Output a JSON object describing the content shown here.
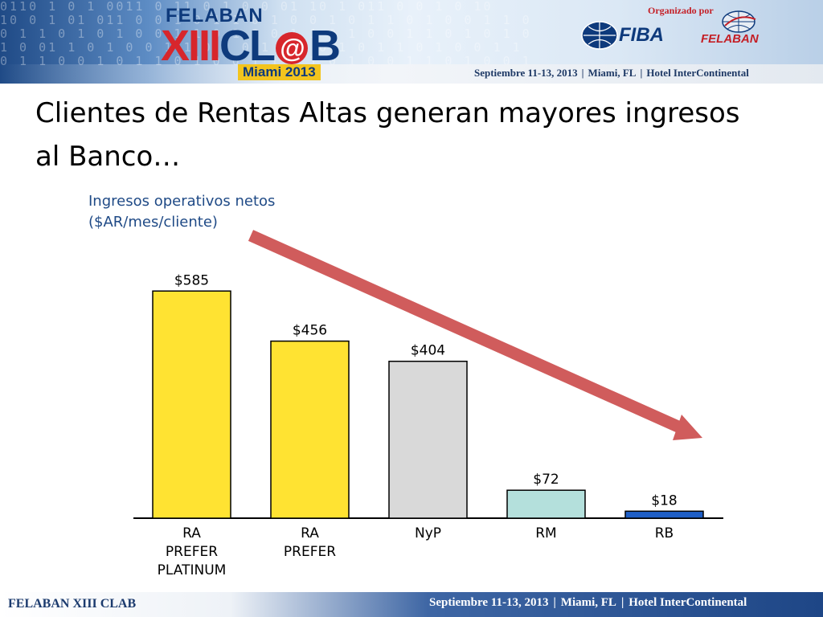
{
  "header": {
    "logo_top": "FELABAN",
    "logo_main_red": "XIII",
    "logo_main_cl": "CL",
    "logo_main_at": "@",
    "logo_main_b": "B",
    "logo_city": "Miami 2013",
    "organized_by": "Organizado por",
    "partner1": "FIBA",
    "partner2": "FELABAN",
    "event_dates": "Septiembre 11-13, 2013",
    "event_city": "Miami, FL",
    "event_venue": "Hotel InterContinental",
    "colors": {
      "navy": "#0e3a7c",
      "red": "#d7262c",
      "gold": "#f3c41e"
    }
  },
  "title": {
    "line1": "Clientes de Rentas Altas generan mayores ingresos",
    "line2": "al Banco…"
  },
  "chart_data": {
    "type": "bar",
    "note_line1": "Ingresos operativos netos",
    "note_line2": "($AR/mes/cliente)",
    "categories": [
      [
        "RA",
        "PREFER",
        "PLATINUM"
      ],
      [
        "RA",
        "PREFER"
      ],
      [
        "NyP"
      ],
      [
        "RM"
      ],
      [
        "RB"
      ]
    ],
    "values": [
      585,
      456,
      404,
      72,
      18
    ],
    "value_labels": [
      "$585",
      "$456",
      "$404",
      "$72",
      "$18"
    ],
    "colors": [
      "#ffe332",
      "#ffe332",
      "#d9d9d9",
      "#b4e0dc",
      "#1f5fc6"
    ],
    "ylim": [
      0,
      600
    ],
    "arrow": {
      "color": "#d05c5c",
      "direction": "down-right"
    }
  },
  "footer": {
    "left": "FELABAN XIII CLAB",
    "dates": "Septiembre 11-13, 2013",
    "city": "Miami, FL",
    "venue": "Hotel InterContinental"
  }
}
